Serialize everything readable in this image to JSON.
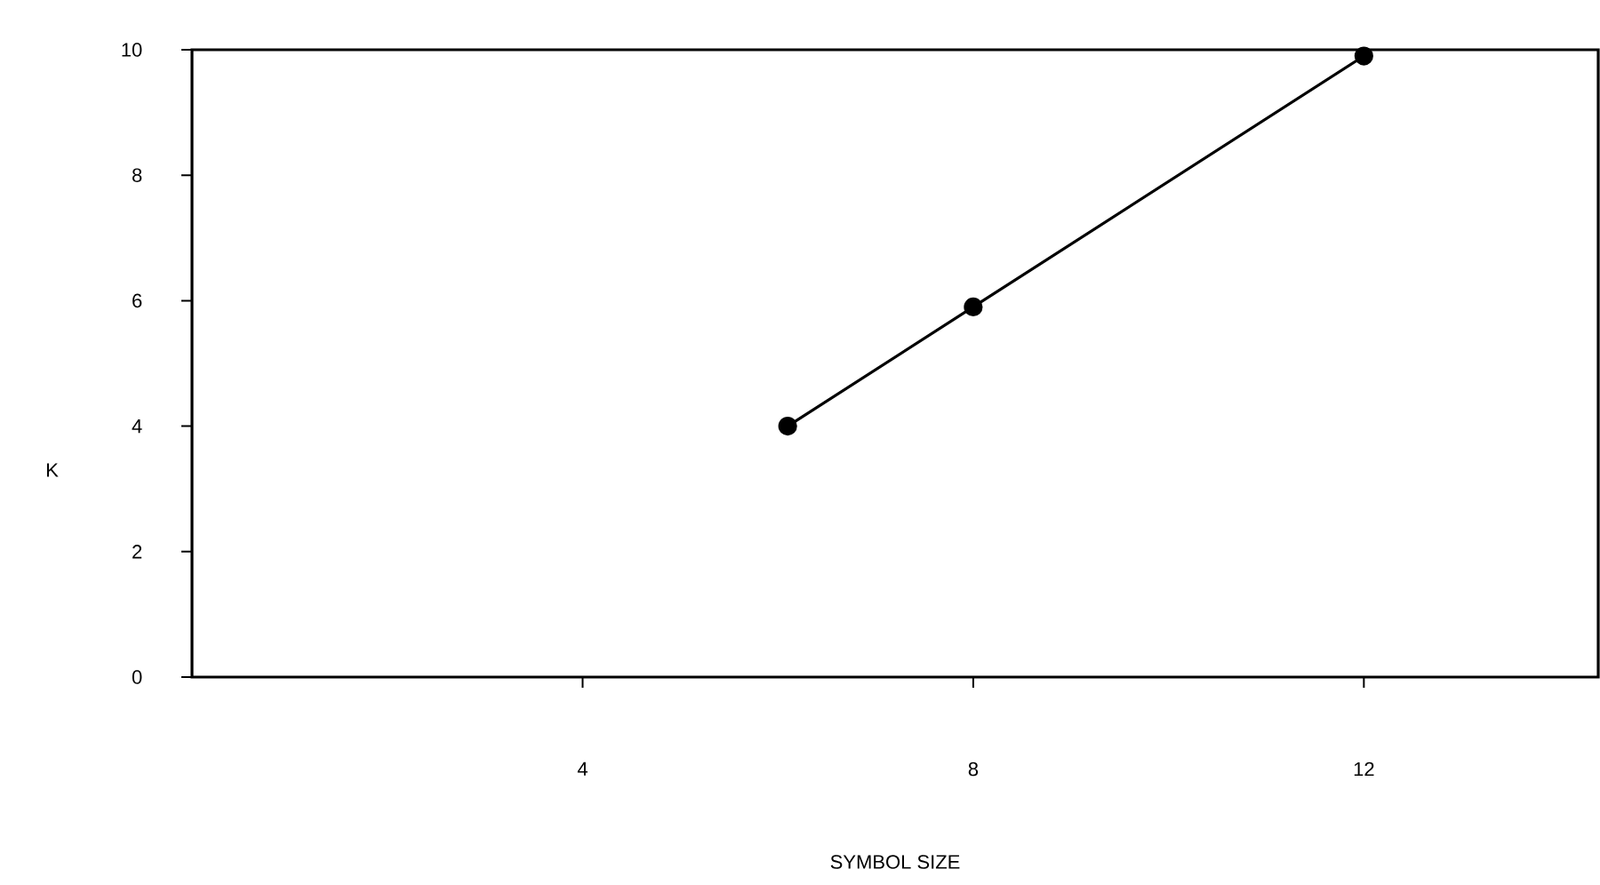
{
  "chart_data": {
    "type": "line",
    "xlabel": "SYMBOL SIZE",
    "ylabel": "K",
    "x": [
      6.1,
      8,
      12
    ],
    "series": [
      {
        "color": "#000000",
        "values": [
          4,
          5.9,
          9.9
        ]
      }
    ],
    "xlim": [
      0,
      14.4
    ],
    "ylim": [
      0,
      10
    ],
    "xticks": [
      4,
      8,
      12
    ],
    "yticks": [
      0,
      2,
      4,
      6,
      8,
      10
    ],
    "marker": "circle",
    "line_style": "solid",
    "grid": false
  }
}
